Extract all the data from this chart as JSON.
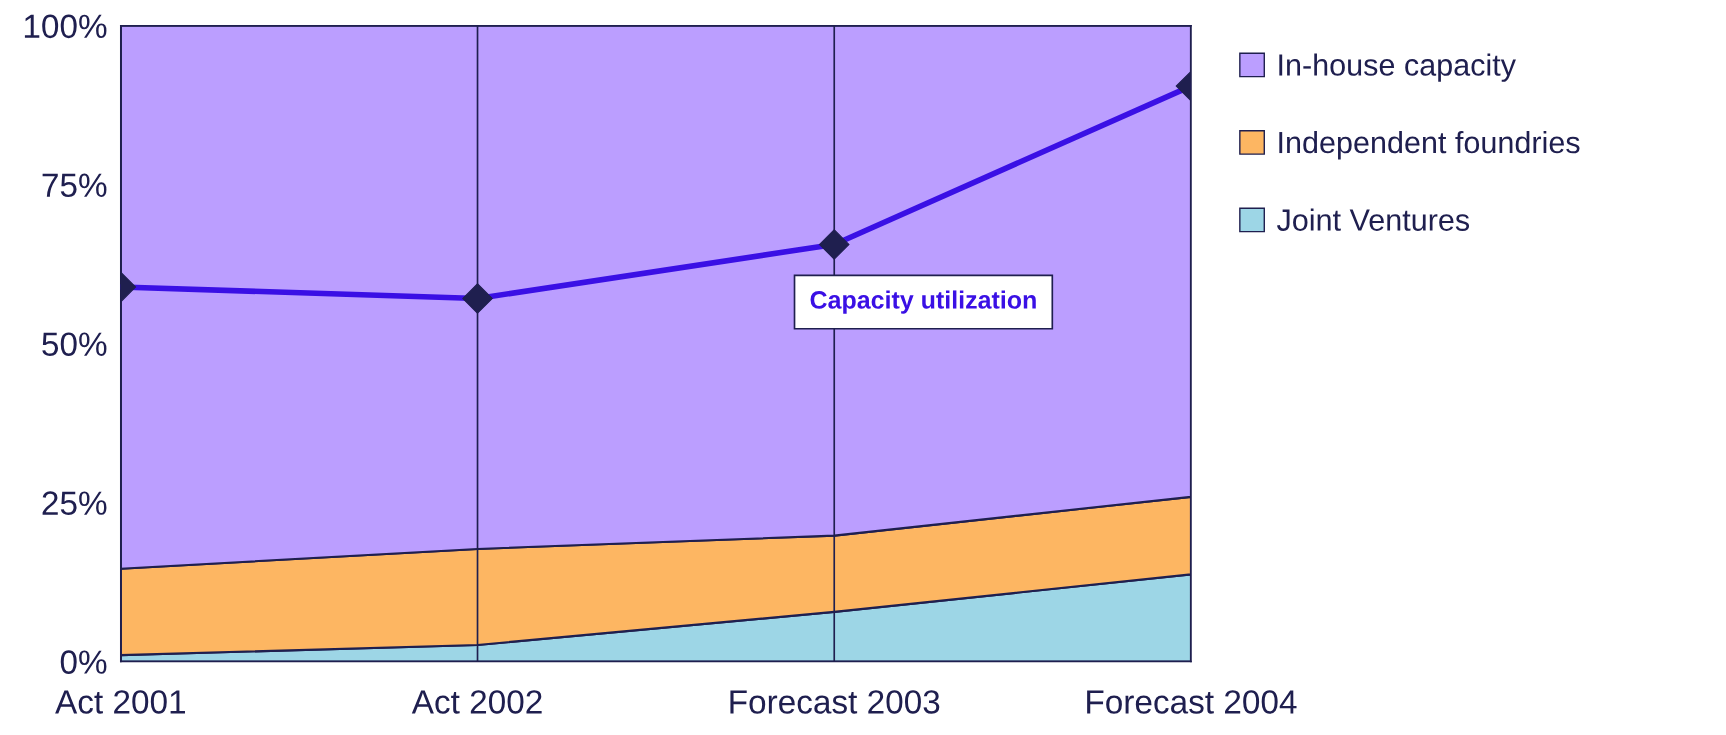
{
  "chart_data": {
    "type": "area",
    "stacked": true,
    "categories": [
      "Act 2001",
      "Act 2002",
      "Forecast 2003",
      "Forecast 2004"
    ],
    "series": [
      {
        "name": "Joint Ventures",
        "color": "#9dd6e6",
        "values": [
          1.0,
          2.6,
          7.8,
          13.7
        ]
      },
      {
        "name": "Independent foundries",
        "color": "#fdb662",
        "values": [
          13.6,
          15.1,
          12.0,
          12.2
        ]
      },
      {
        "name": "In-house capacity",
        "color": "#bb9eff",
        "values": [
          85.4,
          82.3,
          80.2,
          74.1
        ]
      },
      {
        "name": "Capacity utilization",
        "type": "line",
        "color": "#3a10e5",
        "values": [
          58.9,
          57.1,
          65.6,
          90.5
        ],
        "marker": "diamond"
      }
    ],
    "ylim": [
      0,
      100
    ],
    "yticks": [
      {
        "value": 0,
        "label": "0%"
      },
      {
        "value": 25,
        "label": "25%"
      },
      {
        "value": 50,
        "label": "50%"
      },
      {
        "value": 75,
        "label": "75%"
      },
      {
        "value": 100,
        "label": "100%"
      }
    ],
    "grid": "x",
    "legend": "right"
  }
}
